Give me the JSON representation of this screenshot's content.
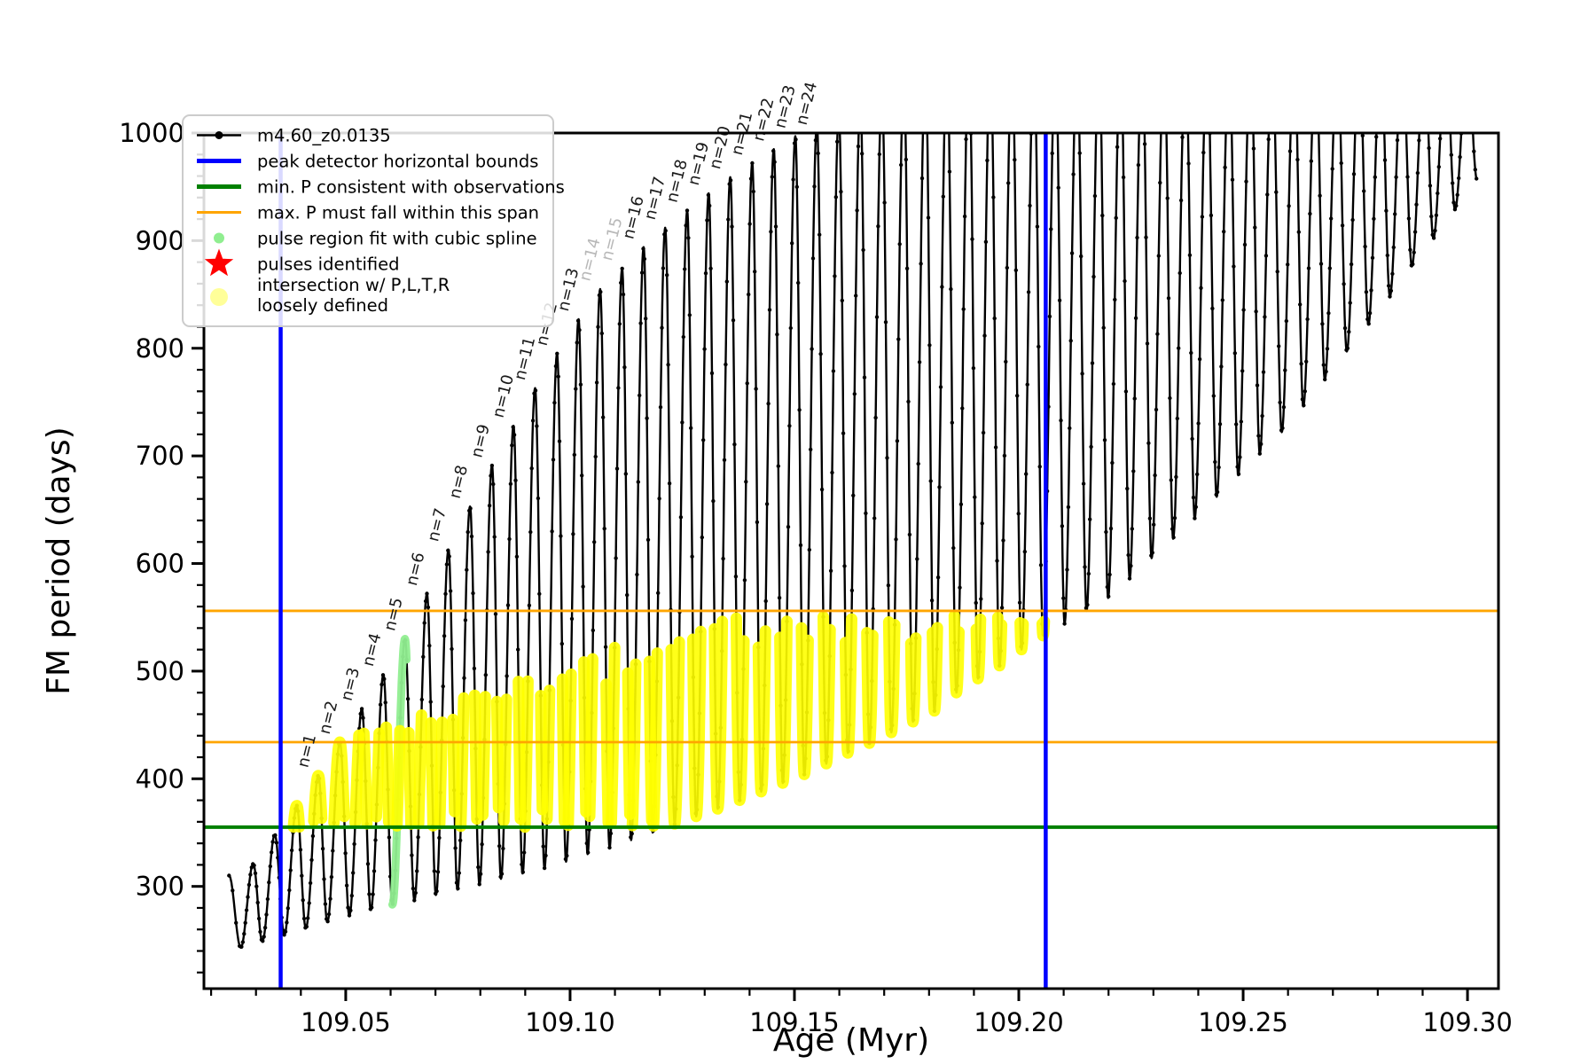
{
  "title": "",
  "chart_data": {
    "type": "line",
    "series_name": "m4.60_z0.0135",
    "xlabel": "Age (Myr)",
    "ylabel": "FM period (days)",
    "xlim": [
      109.0184,
      109.3069
    ],
    "ylim": [
      205,
      1000
    ],
    "xticks": [
      109.05,
      109.1,
      109.15,
      109.2,
      109.25,
      109.3
    ],
    "xtick_labels": [
      "109.05",
      "109.10",
      "109.15",
      "109.20",
      "109.25",
      "109.30"
    ],
    "yticks": [
      300,
      400,
      500,
      600,
      700,
      800,
      900,
      1000
    ],
    "ytick_labels": [
      "300",
      "400",
      "500",
      "600",
      "700",
      "800",
      "900",
      "1000"
    ],
    "x_minor_step": 0.01,
    "y_minor_step": 20,
    "grid": false,
    "reference_lines": {
      "vertical_blue_x": [
        109.0355,
        109.206
      ],
      "horizontal_green_y": 355,
      "horizontal_orange_y": [
        434,
        556
      ]
    },
    "colors": {
      "series": "#000000",
      "blue_bounds": "#0000ff",
      "green_min_p": "#008000",
      "orange_span": "#ffa500",
      "spline_dots": "#90ee90",
      "pulse_star": "#ff0000",
      "intersection_dots": "#ffff00",
      "gray_label": "#b8b8b8",
      "label": "#1a1a1a"
    },
    "lead_in": {
      "x": 109.024,
      "y": 310
    },
    "pulse_peak_offset": 0.0028,
    "pulses_format": [
      "dip_x_myr",
      "dip_base_days",
      "peak_days",
      "label",
      "role"
    ],
    "pulses": [
      [
        109.0266,
        243,
        321,
        null,
        null
      ],
      [
        109.0314,
        249,
        348,
        null,
        null
      ],
      [
        109.0363,
        255,
        375,
        null,
        null
      ],
      [
        109.0411,
        261,
        403,
        "n=1",
        null
      ],
      [
        109.0459,
        267,
        434,
        "n=2",
        null
      ],
      [
        109.0508,
        273,
        465,
        "n=3",
        null
      ],
      [
        109.0556,
        278,
        497,
        "n=4",
        null
      ],
      [
        109.0604,
        283,
        530,
        "n=5",
        "spline"
      ],
      [
        109.0653,
        287,
        572,
        "n=6",
        null
      ],
      [
        109.0701,
        292,
        613,
        "n=7",
        null
      ],
      [
        109.0749,
        297,
        653,
        "n=8",
        null
      ],
      [
        109.0798,
        302,
        691,
        "n=9",
        null
      ],
      [
        109.0846,
        307,
        728,
        "n=10",
        null
      ],
      [
        109.0894,
        312,
        763,
        "n=11",
        null
      ],
      [
        109.0943,
        317,
        795,
        "n=12",
        null
      ],
      [
        109.0991,
        323,
        827,
        "n=13",
        null
      ],
      [
        109.1039,
        330,
        855,
        "n=14",
        "gray"
      ],
      [
        109.1088,
        336,
        874,
        "n=15",
        "gray"
      ],
      [
        109.1136,
        343,
        894,
        "n=16",
        null
      ],
      [
        109.1184,
        350,
        912,
        "n=17",
        null
      ],
      [
        109.1233,
        358,
        928,
        "n=18",
        null
      ],
      [
        109.1281,
        365,
        944,
        "n=19",
        null
      ],
      [
        109.1329,
        372,
        959,
        "n=20",
        null
      ],
      [
        109.1378,
        380,
        972,
        "n=21",
        null
      ],
      [
        109.1426,
        388,
        985,
        "n=22",
        null
      ],
      [
        109.1474,
        396,
        997,
        "n=23",
        null
      ],
      [
        109.1522,
        404,
        1008,
        "n=24",
        null
      ],
      [
        109.1571,
        414,
        1018,
        null,
        null
      ],
      [
        109.1619,
        424,
        1028,
        null,
        null
      ],
      [
        109.1667,
        433,
        1038,
        null,
        null
      ],
      [
        109.1716,
        443,
        1048,
        null,
        null
      ],
      [
        109.1764,
        453,
        1058,
        null,
        null
      ],
      [
        109.1812,
        463,
        1065,
        null,
        null
      ],
      [
        109.1861,
        480,
        1070,
        null,
        null
      ],
      [
        109.1909,
        493,
        1070,
        null,
        null
      ],
      [
        109.1957,
        505,
        1070,
        null,
        null
      ],
      [
        109.2006,
        520,
        1070,
        null,
        null
      ],
      [
        109.2054,
        533,
        1070,
        null,
        null
      ],
      [
        109.2102,
        544,
        1070,
        null,
        null
      ],
      [
        109.2151,
        556,
        1070,
        null,
        null
      ],
      [
        109.2199,
        568,
        1070,
        null,
        null
      ],
      [
        109.2247,
        586,
        1070,
        null,
        null
      ],
      [
        109.2296,
        605,
        1070,
        null,
        null
      ],
      [
        109.2344,
        623,
        1070,
        null,
        null
      ],
      [
        109.2392,
        642,
        1070,
        null,
        null
      ],
      [
        109.2441,
        662,
        1070,
        null,
        null
      ],
      [
        109.2489,
        682,
        1070,
        null,
        null
      ],
      [
        109.2537,
        702,
        1070,
        null,
        null
      ],
      [
        109.2586,
        722,
        1070,
        null,
        null
      ],
      [
        109.2634,
        746,
        1070,
        null,
        null
      ],
      [
        109.2682,
        771,
        1070,
        null,
        null
      ],
      [
        109.2731,
        797,
        1070,
        null,
        null
      ],
      [
        109.2779,
        822,
        1070,
        null,
        null
      ],
      [
        109.2827,
        848,
        1070,
        null,
        null
      ],
      [
        109.2876,
        876,
        1070,
        null,
        null
      ],
      [
        109.2924,
        902,
        1070,
        null,
        null
      ],
      [
        109.2972,
        929,
        1070,
        null,
        null
      ]
    ],
    "end_dip": [
      109.3021,
      957
    ],
    "yellow_region": {
      "x_min": 109.0355,
      "x_max": 109.206,
      "y_min": 355,
      "y_top_max": 552,
      "ramp_origin_x": 109.044,
      "ramp_base": 430,
      "ramp_slope": 1400
    }
  },
  "legend": {
    "items": [
      {
        "label": "m4.60_z0.0135",
        "marker": "line-dot",
        "color": "#000000",
        "lw": 2.5,
        "size": 4.5
      },
      {
        "label": "peak detector horizontal bounds",
        "marker": "line",
        "color": "#0000ff",
        "lw": 5,
        "size": 0
      },
      {
        "label": "min. P consistent with observations",
        "marker": "line",
        "color": "#008000",
        "lw": 5,
        "size": 0
      },
      {
        "label": "max. P must fall within this span",
        "marker": "line",
        "color": "#ffa500",
        "lw": 3,
        "size": 0
      },
      {
        "label": "pulse region fit with cubic spline",
        "marker": "dot",
        "color": "#90ee90",
        "lw": 0,
        "size": 6
      },
      {
        "label": "pulses identified",
        "marker": "star",
        "color": "#ff0000",
        "lw": 0,
        "size": 17
      },
      {
        "label": "intersection w/ P,L,T,R\nloosely defined",
        "marker": "dot",
        "color": "#ffff99",
        "lw": 0,
        "size": 10
      }
    ]
  }
}
